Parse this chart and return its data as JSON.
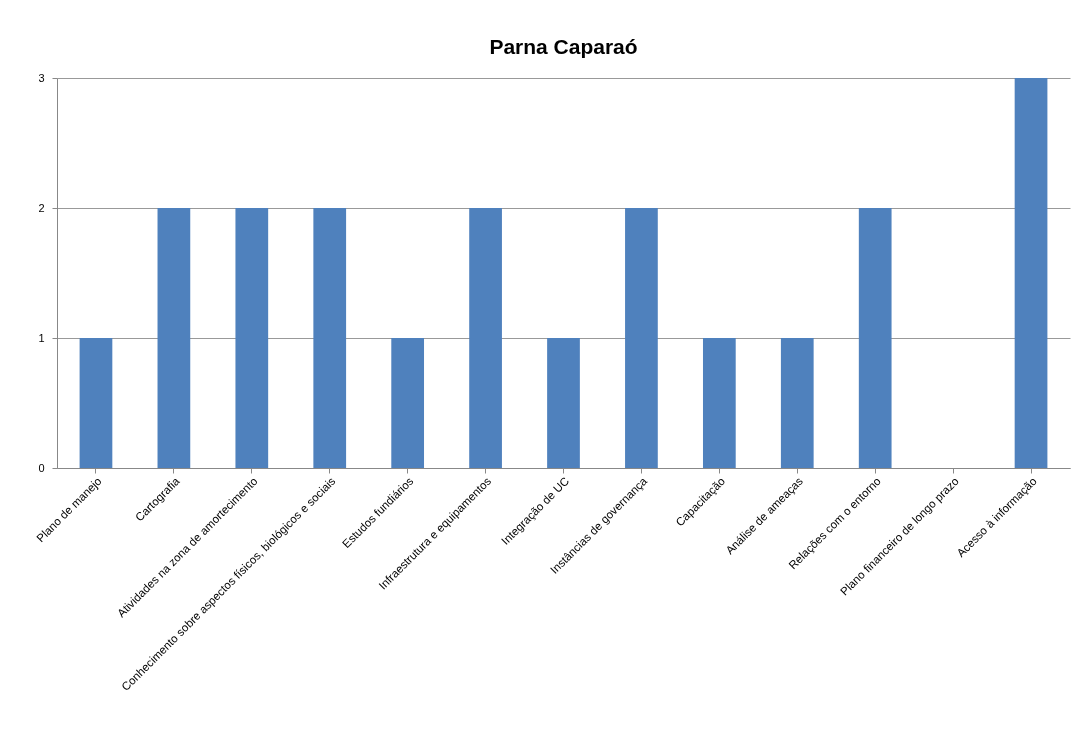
{
  "chart_data": {
    "type": "bar",
    "title": "Parna Caparaó",
    "categories": [
      "Plano de manejo",
      "Cartografia",
      "Atividades na zona de amortecimento",
      "Conhecimento sobre aspectos físicos, biológicos e sociais",
      "Estudos fundiários",
      "Infraestrutura e equipamentos",
      "Integração de UC",
      "Instâncias de governança",
      "Capacitação",
      "Análise de ameaças",
      "Relações com o entorno",
      "Plano financeiro de longo prazo",
      "Acesso à informação"
    ],
    "values": [
      1,
      2,
      2,
      2,
      1,
      2,
      1,
      2,
      1,
      1,
      2,
      0,
      3
    ],
    "color": "#4f81bd",
    "ylim": [
      0,
      3
    ],
    "yticks": [
      0,
      1,
      2,
      3
    ],
    "grid": "y"
  }
}
